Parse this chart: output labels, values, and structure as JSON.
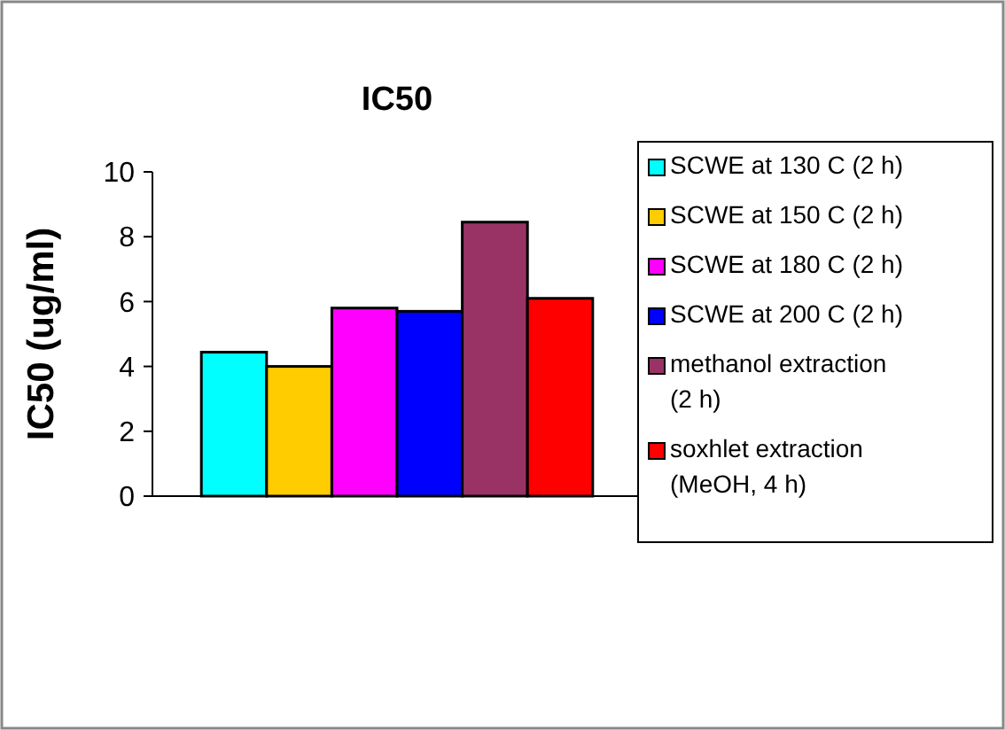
{
  "chart_data": {
    "type": "bar",
    "title": "IC50",
    "ylabel": "IC50 (ug/ml)",
    "categories": [
      null
    ],
    "series": [
      {
        "name": "SCWE at 130 C (2 h)",
        "color": "#00ffff",
        "values": [
          4.44
        ]
      },
      {
        "name": "SCWE at 150 C (2 h)",
        "color": "#ffcc00",
        "values": [
          4.0
        ]
      },
      {
        "name": "SCWE at 180 C (2 h)",
        "color": "#ff00ff",
        "values": [
          5.8
        ]
      },
      {
        "name": "SCWE at 200 C (2 h)",
        "color": "#0000ff",
        "values": [
          5.7
        ]
      },
      {
        "name": "methanol extraction (2 h)",
        "color": "#993366",
        "values": [
          8.45
        ]
      },
      {
        "name": "soxhlet extraction (MeOH, 4 h)",
        "color": "#ff0000",
        "values": [
          6.1
        ]
      }
    ],
    "ylim": [
      0,
      10
    ],
    "yticks": [
      0,
      2,
      4,
      6,
      8,
      10
    ],
    "legend": "right",
    "grid": false
  }
}
